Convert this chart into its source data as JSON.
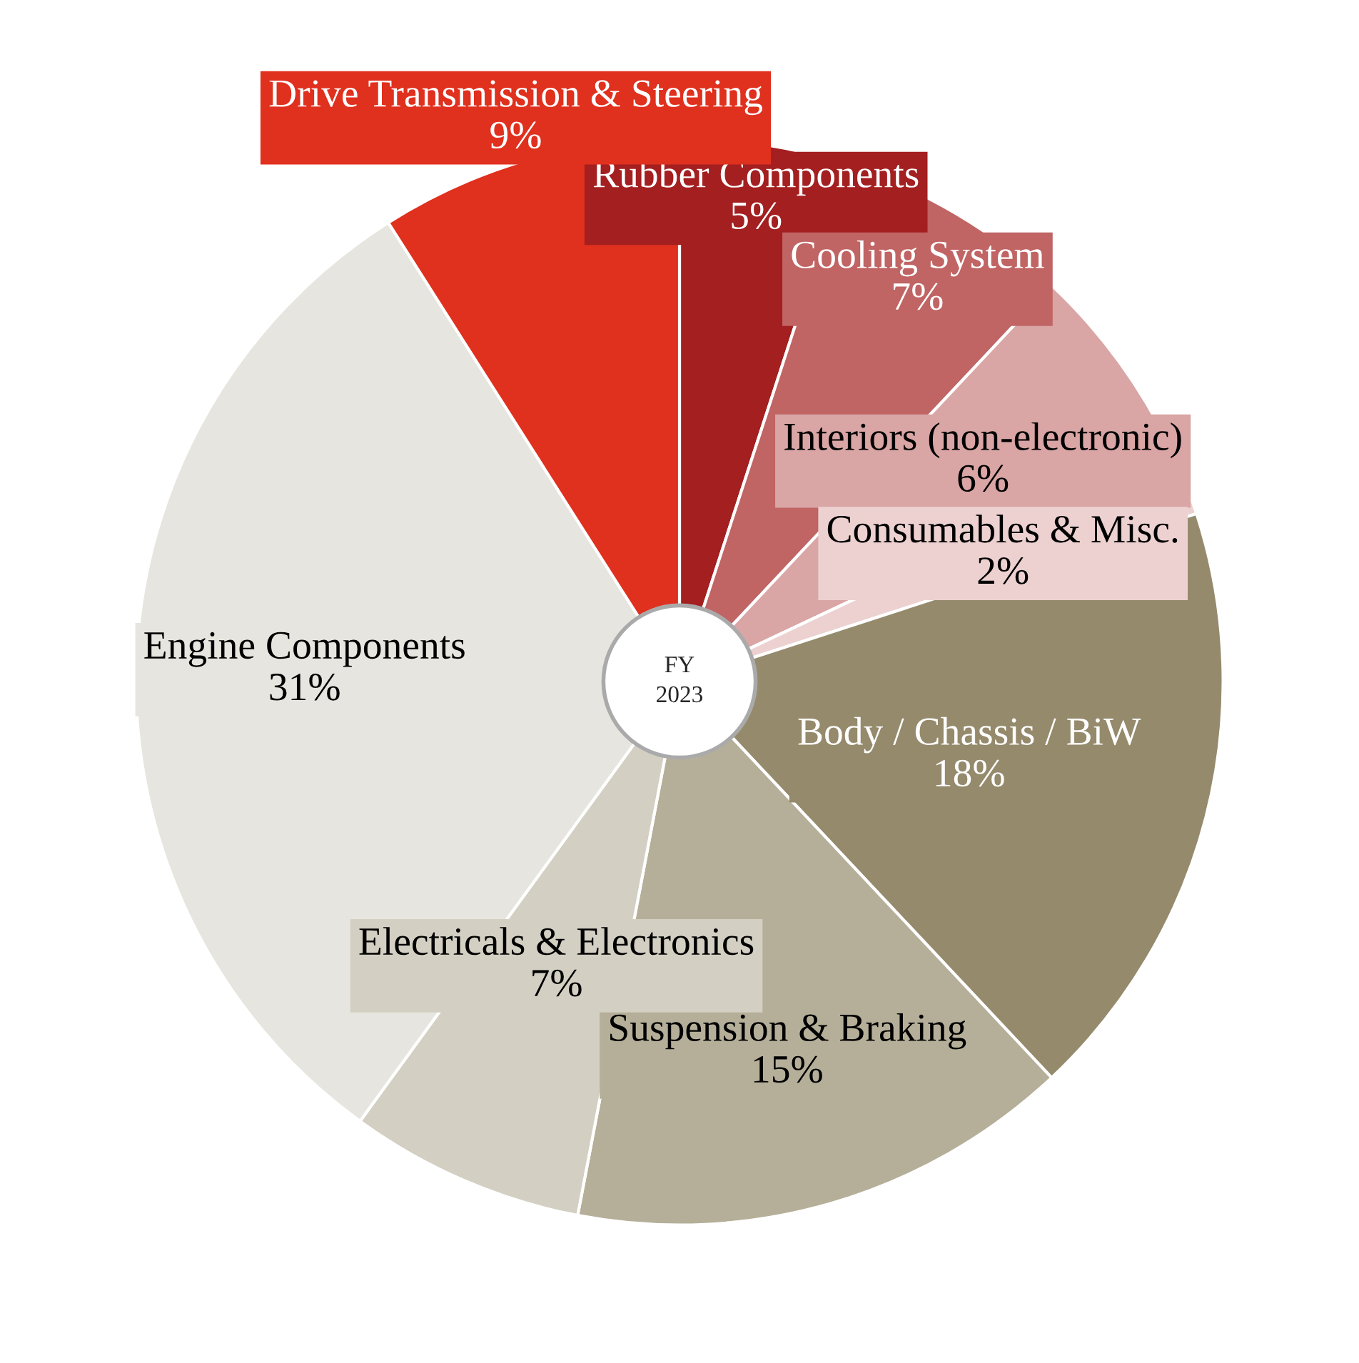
{
  "chart_data": {
    "type": "donut",
    "title": "FY\n2023",
    "categories": [
      "Rubber Components",
      "Cooling System",
      "Interiors (non-electronic)",
      "Consumables & Misc.",
      "Body / Chassis / BiW",
      "Suspension & Braking",
      "Electricals & Electronics",
      "Engine Components",
      "Drive Transmission & Steering"
    ],
    "values": [
      5,
      7,
      6,
      2,
      18,
      15,
      7,
      31,
      9
    ],
    "value_labels": [
      "5%",
      "7%",
      "6%",
      "2%",
      "18%",
      "15%",
      "7%",
      "31%",
      "9%"
    ],
    "colors": [
      "#a31f20",
      "#c06464",
      "#d9a5a5",
      "#edd1d1",
      "#958a6c",
      "#b5af99",
      "#d3cfc2",
      "#e7e5df",
      "#e0301e"
    ]
  }
}
